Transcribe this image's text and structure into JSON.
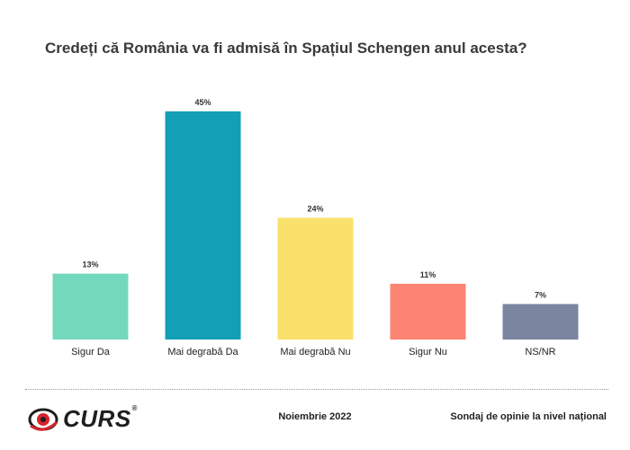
{
  "header": {
    "title": "Credeți că România va fi admisă în Spațiul Schengen anul acesta?"
  },
  "chart_data": {
    "type": "bar",
    "categories": [
      "Sigur Da",
      "Mai degrabă Da",
      "Mai degrabă Nu",
      "Sigur Nu",
      "NS/NR"
    ],
    "values": [
      13,
      45,
      24,
      11,
      7
    ],
    "value_labels": [
      "13%",
      "45%",
      "24%",
      "11%",
      "7%"
    ],
    "colors": [
      "#74d8bd",
      "#139fb5",
      "#f9e06a",
      "#fb8472",
      "#7a86a0"
    ],
    "title": "Credeți că România va fi admisă în Spațiul Schengen anul acesta?",
    "xlabel": "",
    "ylabel": "",
    "ylim": [
      0,
      45
    ],
    "grid": false
  },
  "footer": {
    "logo_text": "CURS",
    "logo_mark": "®",
    "date": "Noiembrie 2022",
    "source": "Sondaj de opinie la nivel național"
  }
}
